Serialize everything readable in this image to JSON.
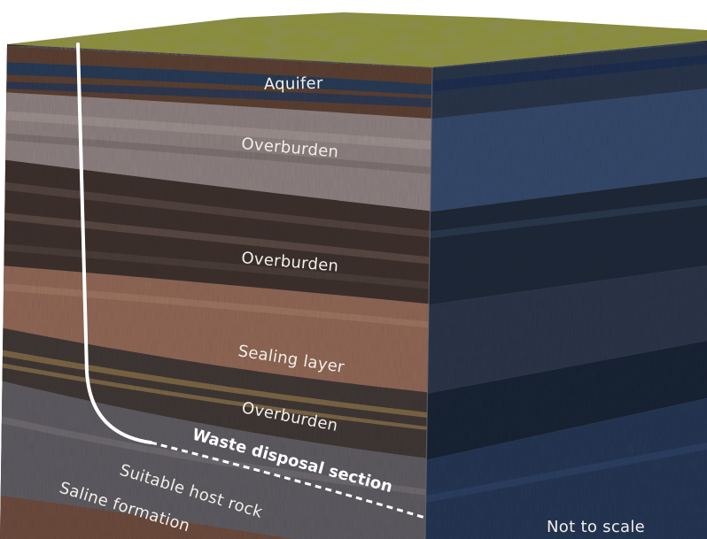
{
  "diagram": {
    "layers": {
      "aquifer": "Aquifer",
      "overburden_top": "Overburden",
      "overburden_mid": "Overburden",
      "sealing_layer": "Sealing layer",
      "overburden_low": "Overburden",
      "waste_section": "Waste disposal section",
      "host_rock": "Suitable host rock",
      "saline": "Saline formation"
    },
    "note": "Not to scale"
  }
}
